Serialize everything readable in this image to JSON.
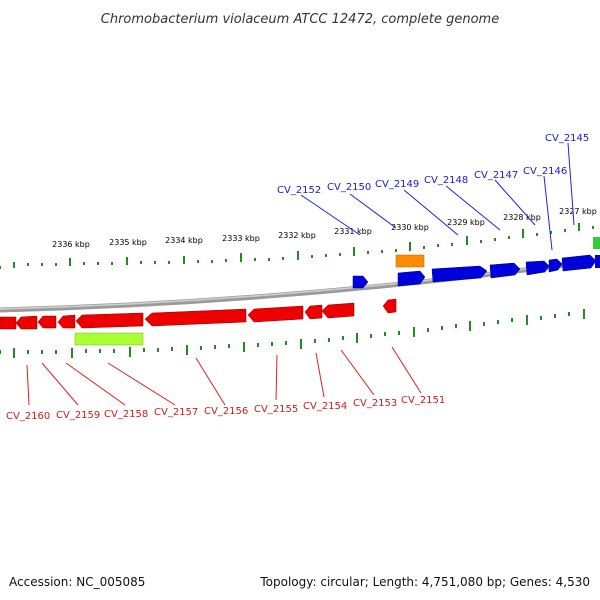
{
  "header": {
    "title": "Chromobacterium violaceum ATCC 12472, complete genome"
  },
  "footer": {
    "accession": "Accession: NC_005085",
    "summary": "Topology: circular; Length: 4,751,080 bp; Genes: 4,530"
  },
  "ruler": {
    "labels": [
      "2336 kbp",
      "2335 kbp",
      "2334 kbp",
      "2333 kbp",
      "2332 kbp",
      "2331 kbp",
      "2330 kbp",
      "2329 kbp",
      "2328 kbp",
      "2327 kbp"
    ]
  },
  "genes_top": [
    {
      "name": "CV_2152",
      "color": "#0000dd"
    },
    {
      "name": "CV_2150",
      "color": "#0000dd"
    },
    {
      "name": "CV_2149",
      "color": "#0000dd"
    },
    {
      "name": "CV_2148",
      "color": "#0000dd"
    },
    {
      "name": "CV_2147",
      "color": "#0000dd"
    },
    {
      "name": "CV_2146",
      "color": "#0000dd"
    },
    {
      "name": "CV_2145",
      "color": "#0000dd"
    }
  ],
  "genes_bottom": [
    {
      "name": "CV_2160",
      "color": "#ee0000"
    },
    {
      "name": "CV_2159",
      "color": "#ee0000"
    },
    {
      "name": "CV_2158",
      "color": "#ee0000"
    },
    {
      "name": "CV_2157",
      "color": "#ee0000"
    },
    {
      "name": "CV_2156",
      "color": "#ee0000"
    },
    {
      "name": "CV_2155",
      "color": "#ee0000"
    },
    {
      "name": "CV_2154",
      "color": "#ee0000"
    },
    {
      "name": "CV_2153",
      "color": "#ee0000"
    },
    {
      "name": "CV_2151",
      "color": "#ee0000"
    }
  ],
  "colors": {
    "forward_strand": "#0000dd",
    "reverse_strand": "#ee0000",
    "rna_orange": "#ff8c00",
    "rna_lime": "#aaff33",
    "green_feature": "#33cc33",
    "tick_green": "#228b22"
  }
}
